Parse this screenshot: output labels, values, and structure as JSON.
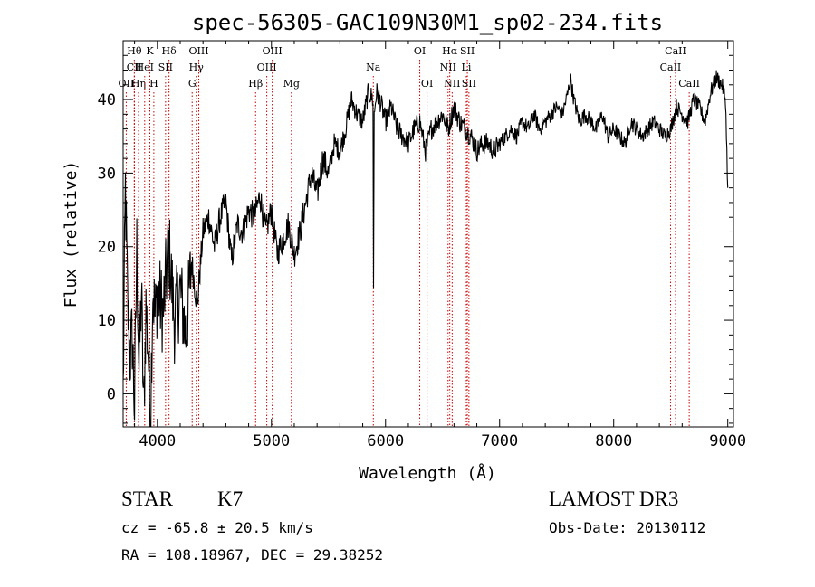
{
  "chart_data": {
    "type": "line",
    "title": "spec-56305-GAC109N30M1_sp02-234.fits",
    "xlabel": "Wavelength (Å)",
    "ylabel": "Flux (relative)",
    "xlim": [
      3700,
      9050
    ],
    "ylim": [
      -4.5,
      48
    ],
    "x_ticks": [
      4000,
      5000,
      6000,
      7000,
      8000,
      9000
    ],
    "y_ticks": [
      0,
      10,
      20,
      30,
      40
    ],
    "x_tick_labels": [
      "4000",
      "5000",
      "6000",
      "7000",
      "8000",
      "9000"
    ],
    "y_tick_labels": [
      "0",
      "10",
      "20",
      "30",
      "40"
    ],
    "grid": false,
    "line_color": "#000000",
    "marker_color": "#cc0000",
    "spectrum": {
      "name": "flux",
      "x": [
        3700,
        3720,
        3740,
        3760,
        3780,
        3800,
        3820,
        3840,
        3860,
        3880,
        3900,
        3920,
        3940,
        3960,
        3980,
        4000,
        4050,
        4100,
        4150,
        4200,
        4250,
        4300,
        4350,
        4400,
        4450,
        4500,
        4550,
        4600,
        4650,
        4700,
        4750,
        4800,
        4850,
        4900,
        4950,
        5000,
        5050,
        5100,
        5150,
        5200,
        5250,
        5300,
        5350,
        5400,
        5450,
        5500,
        5550,
        5600,
        5650,
        5700,
        5750,
        5800,
        5850,
        5890,
        5895,
        5900,
        5920,
        5950,
        6000,
        6050,
        6100,
        6150,
        6200,
        6250,
        6300,
        6350,
        6400,
        6450,
        6500,
        6550,
        6600,
        6650,
        6700,
        6750,
        6800,
        6850,
        6900,
        6950,
        7000,
        7050,
        7100,
        7150,
        7200,
        7250,
        7300,
        7350,
        7400,
        7450,
        7500,
        7550,
        7600,
        7620,
        7650,
        7700,
        7750,
        7800,
        7850,
        7900,
        7950,
        8000,
        8050,
        8100,
        8150,
        8200,
        8250,
        8300,
        8350,
        8400,
        8450,
        8500,
        8550,
        8600,
        8650,
        8700,
        8750,
        8800,
        8850,
        8900,
        8950,
        8980,
        9000
      ],
      "y": [
        0,
        28,
        12,
        5,
        8,
        -2,
        20,
        3,
        14,
        -3,
        12,
        6,
        -4,
        15,
        10,
        14,
        11,
        20,
        10,
        14,
        8,
        18,
        12,
        22,
        24,
        20,
        24,
        26,
        18,
        23,
        22,
        25,
        24,
        27,
        22,
        25,
        19,
        21,
        23,
        19,
        22,
        26,
        30,
        27,
        32,
        30,
        34,
        33,
        36,
        40,
        38,
        37,
        41,
        40,
        14,
        38,
        41,
        40,
        37,
        39,
        36,
        35,
        34,
        36,
        37,
        33,
        36,
        37,
        38,
        36,
        39,
        37,
        36,
        35,
        33,
        34,
        34,
        33,
        34,
        35,
        36,
        35,
        37,
        36,
        38,
        36,
        37,
        38,
        39,
        38,
        41,
        43,
        40,
        37,
        38,
        37,
        36,
        38,
        35,
        36,
        35,
        34,
        37,
        36,
        35,
        36,
        37,
        36,
        35,
        36,
        39,
        38,
        37,
        40,
        39,
        37,
        41,
        43,
        42,
        40,
        28
      ]
    },
    "line_markers": [
      {
        "label": "Hθ",
        "x": 3798,
        "row": 0
      },
      {
        "label": "CII",
        "x": 3798,
        "row": 1
      },
      {
        "label": "OII",
        "x": 3727,
        "row": 2
      },
      {
        "label": "Hη",
        "x": 3835,
        "row": 2
      },
      {
        "label": "HeI",
        "x": 3889,
        "row": 1
      },
      {
        "label": "K",
        "x": 3934,
        "row": 0
      },
      {
        "label": "H",
        "x": 3969,
        "row": 2
      },
      {
        "label": "SII",
        "x": 4072,
        "row": 1
      },
      {
        "label": "Hδ",
        "x": 4102,
        "row": 0
      },
      {
        "label": "G",
        "x": 4305,
        "row": 2
      },
      {
        "label": "OIII",
        "x": 4363,
        "row": 0
      },
      {
        "label": "Hγ",
        "x": 4341,
        "row": 1
      },
      {
        "label": "Hβ",
        "x": 4861,
        "row": 2
      },
      {
        "label": "OIII",
        "x": 4959,
        "row": 1
      },
      {
        "label": "OIII",
        "x": 5007,
        "row": 0
      },
      {
        "label": "Mg",
        "x": 5175,
        "row": 2
      },
      {
        "label": "Na",
        "x": 5893,
        "row": 1
      },
      {
        "label": "OI",
        "x": 6300,
        "row": 0
      },
      {
        "label": "OI",
        "x": 6364,
        "row": 2
      },
      {
        "label": "NII",
        "x": 6548,
        "row": 1
      },
      {
        "label": "Hα",
        "x": 6563,
        "row": 0
      },
      {
        "label": "NII",
        "x": 6584,
        "row": 2
      },
      {
        "label": "SII",
        "x": 6717,
        "row": 0
      },
      {
        "label": "Li",
        "x": 6708,
        "row": 1
      },
      {
        "label": "SII",
        "x": 6731,
        "row": 2
      },
      {
        "label": "CaII",
        "x": 8498,
        "row": 1
      },
      {
        "label": "CaII",
        "x": 8542,
        "row": 0
      },
      {
        "label": "CaII",
        "x": 8662,
        "row": 2
      }
    ]
  },
  "footer": {
    "object_class": "STAR",
    "subclass": "K7",
    "survey": "LAMOST DR3",
    "redshift_text": "cz = -65.8 ± 20.5 km/s",
    "obs_date_text": "Obs-Date: 20130112",
    "coords_text": "RA = 108.18967, DEC =  29.38252"
  }
}
